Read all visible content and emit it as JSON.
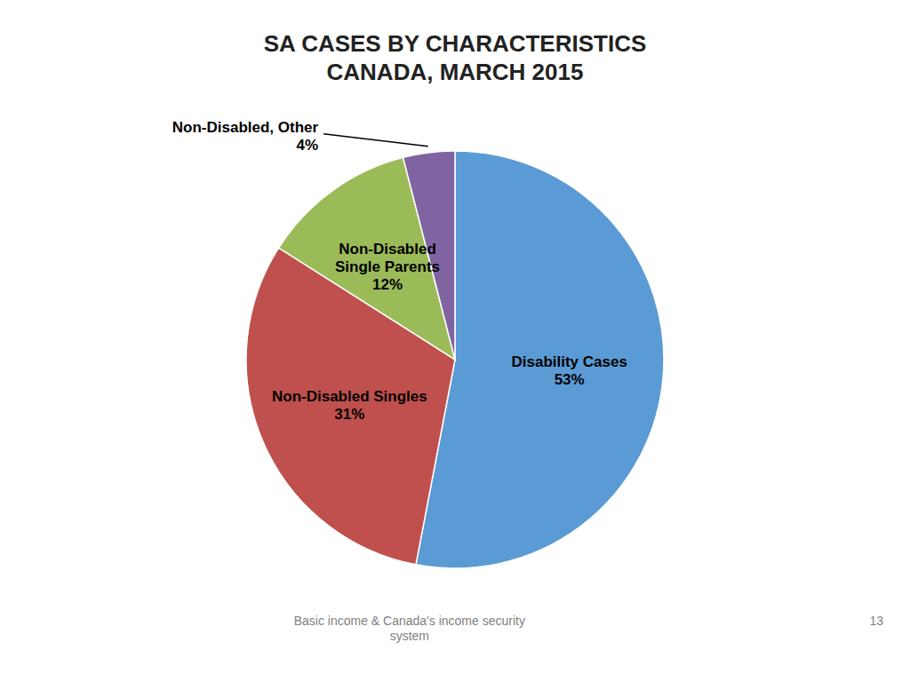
{
  "chart_data": {
    "type": "pie",
    "title": "SA CASES BY CHARACTERISTICS\nCANADA, MARCH 2015",
    "categories": [
      "Disability Cases",
      "Non-Disabled Singles",
      "Non-Disabled\nSingle Parents",
      "Non-Disabled, Other"
    ],
    "values": [
      53,
      31,
      12,
      4
    ],
    "value_labels": [
      "53%",
      "31%",
      "12%",
      "4%"
    ],
    "colors": [
      "#5B9BD5",
      "#C0504D",
      "#9BBB59",
      "#8064A2"
    ],
    "data_labels": true,
    "annotations": [
      "Basic income & Canada's income security\nsystem",
      "13"
    ]
  }
}
